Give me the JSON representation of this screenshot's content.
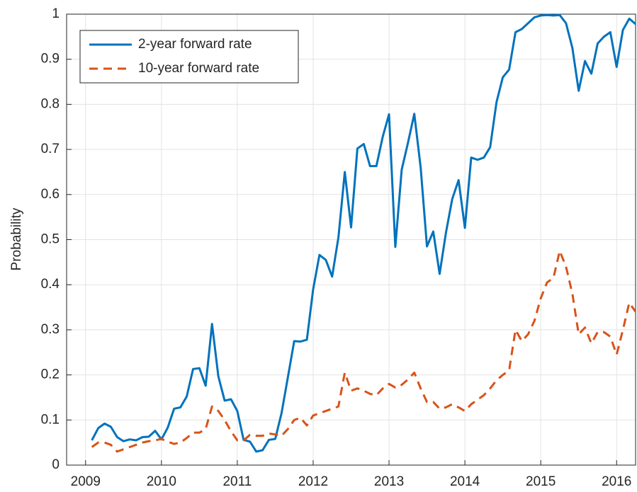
{
  "chart_data": {
    "type": "line",
    "y_label": "Probability",
    "x": [
      2009.083,
      2009.167,
      2009.25,
      2009.333,
      2009.417,
      2009.5,
      2009.583,
      2009.667,
      2009.75,
      2009.833,
      2009.917,
      2010,
      2010.083,
      2010.167,
      2010.25,
      2010.333,
      2010.417,
      2010.5,
      2010.583,
      2010.667,
      2010.75,
      2010.833,
      2010.917,
      2011,
      2011.083,
      2011.167,
      2011.25,
      2011.333,
      2011.417,
      2011.5,
      2011.583,
      2011.667,
      2011.75,
      2011.833,
      2011.917,
      2012,
      2012.083,
      2012.167,
      2012.25,
      2012.333,
      2012.417,
      2012.5,
      2012.583,
      2012.667,
      2012.75,
      2012.833,
      2012.917,
      2013,
      2013.083,
      2013.167,
      2013.25,
      2013.333,
      2013.417,
      2013.5,
      2013.583,
      2013.667,
      2013.75,
      2013.833,
      2013.917,
      2014,
      2014.083,
      2014.167,
      2014.25,
      2014.333,
      2014.417,
      2014.5,
      2014.583,
      2014.667,
      2014.75,
      2014.833,
      2014.917,
      2015,
      2015.083,
      2015.167,
      2015.25,
      2015.333,
      2015.417,
      2015.5,
      2015.583,
      2015.667,
      2015.75,
      2015.833,
      2015.917,
      2016,
      2016.083,
      2016.167,
      2016.25
    ],
    "series": [
      {
        "name": "2-year forward rate",
        "color": "#0072bd",
        "dash": false,
        "values": [
          0.055,
          0.082,
          0.092,
          0.085,
          0.062,
          0.053,
          0.057,
          0.055,
          0.062,
          0.063,
          0.076,
          0.057,
          0.083,
          0.125,
          0.128,
          0.152,
          0.213,
          0.215,
          0.176,
          0.313,
          0.197,
          0.143,
          0.146,
          0.12,
          0.056,
          0.052,
          0.03,
          0.033,
          0.056,
          0.058,
          0.115,
          0.195,
          0.275,
          0.274,
          0.278,
          0.39,
          0.466,
          0.455,
          0.418,
          0.505,
          0.65,
          0.527,
          0.702,
          0.712,
          0.663,
          0.663,
          0.728,
          0.778,
          0.484,
          0.655,
          0.715,
          0.779,
          0.66,
          0.485,
          0.518,
          0.424,
          0.515,
          0.59,
          0.632,
          0.526,
          0.682,
          0.677,
          0.682,
          0.705,
          0.805,
          0.86,
          0.877,
          0.96,
          0.967,
          0.98,
          0.993,
          0.997,
          0.998,
          0.997,
          0.998,
          0.98,
          0.925,
          0.83,
          0.896,
          0.868,
          0.935,
          0.95,
          0.96,
          0.883,
          0.965,
          0.99,
          0.978
        ]
      },
      {
        "name": "10-year forward rate",
        "color": "#d95319",
        "dash": true,
        "values": [
          0.04,
          0.05,
          0.05,
          0.045,
          0.03,
          0.035,
          0.04,
          0.045,
          0.05,
          0.053,
          0.055,
          0.058,
          0.052,
          0.047,
          0.05,
          0.06,
          0.072,
          0.072,
          0.08,
          0.13,
          0.12,
          0.1,
          0.075,
          0.055,
          0.055,
          0.067,
          0.065,
          0.065,
          0.07,
          0.068,
          0.065,
          0.08,
          0.1,
          0.105,
          0.088,
          0.11,
          0.115,
          0.12,
          0.125,
          0.13,
          0.205,
          0.165,
          0.17,
          0.165,
          0.158,
          0.155,
          0.17,
          0.18,
          0.172,
          0.178,
          0.19,
          0.205,
          0.17,
          0.14,
          0.14,
          0.125,
          0.128,
          0.135,
          0.128,
          0.12,
          0.135,
          0.145,
          0.155,
          0.17,
          0.188,
          0.2,
          0.21,
          0.3,
          0.275,
          0.29,
          0.32,
          0.37,
          0.405,
          0.415,
          0.475,
          0.44,
          0.38,
          0.29,
          0.305,
          0.27,
          0.295,
          0.295,
          0.285,
          0.245,
          0.3,
          0.36,
          0.34
        ]
      }
    ],
    "xlim": [
      2008.75,
      2016.25
    ],
    "xticks": [
      2009,
      2010,
      2011,
      2012,
      2013,
      2014,
      2015,
      2016
    ],
    "ylim": [
      0,
      1
    ],
    "yticks": [
      0,
      0.1,
      0.2,
      0.3,
      0.4,
      0.5,
      0.6,
      0.7,
      0.8,
      0.9,
      1
    ],
    "grid": true,
    "legend_position": "upper-left"
  }
}
